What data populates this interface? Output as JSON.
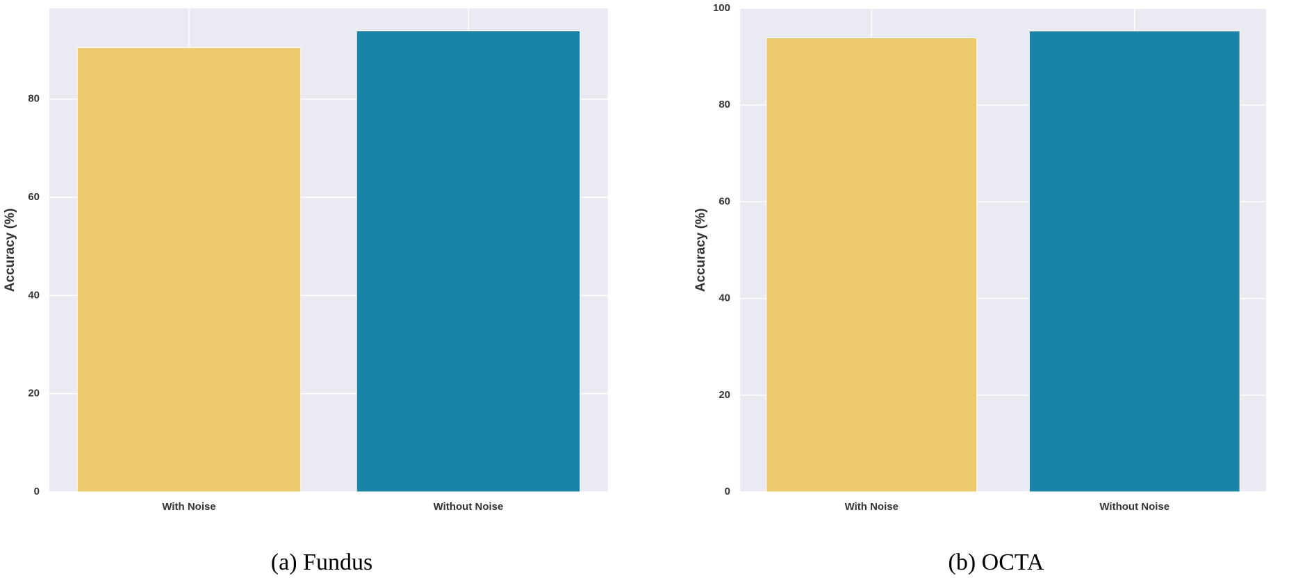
{
  "chart_data": [
    {
      "type": "bar",
      "caption": "(a) Fundus",
      "ylabel": "Accuracy (%)",
      "categories": [
        "With Noise",
        "Without Noise"
      ],
      "values": [
        90.5,
        93.9
      ],
      "colors": [
        "#ecc96c",
        "#1a83a8"
      ],
      "ylim": [
        0,
        98.5
      ],
      "yticks": [
        0,
        20,
        40,
        60,
        80
      ],
      "grid": true
    },
    {
      "type": "bar",
      "caption": "(b) OCTA",
      "ylabel": "Accuracy (%)",
      "categories": [
        "With Noise",
        "Without Noise"
      ],
      "values": [
        93.9,
        95.3
      ],
      "colors": [
        "#ecc96c",
        "#1a83a8"
      ],
      "ylim": [
        0,
        100
      ],
      "yticks": [
        0,
        20,
        40,
        60,
        80,
        100
      ],
      "grid": true
    }
  ]
}
